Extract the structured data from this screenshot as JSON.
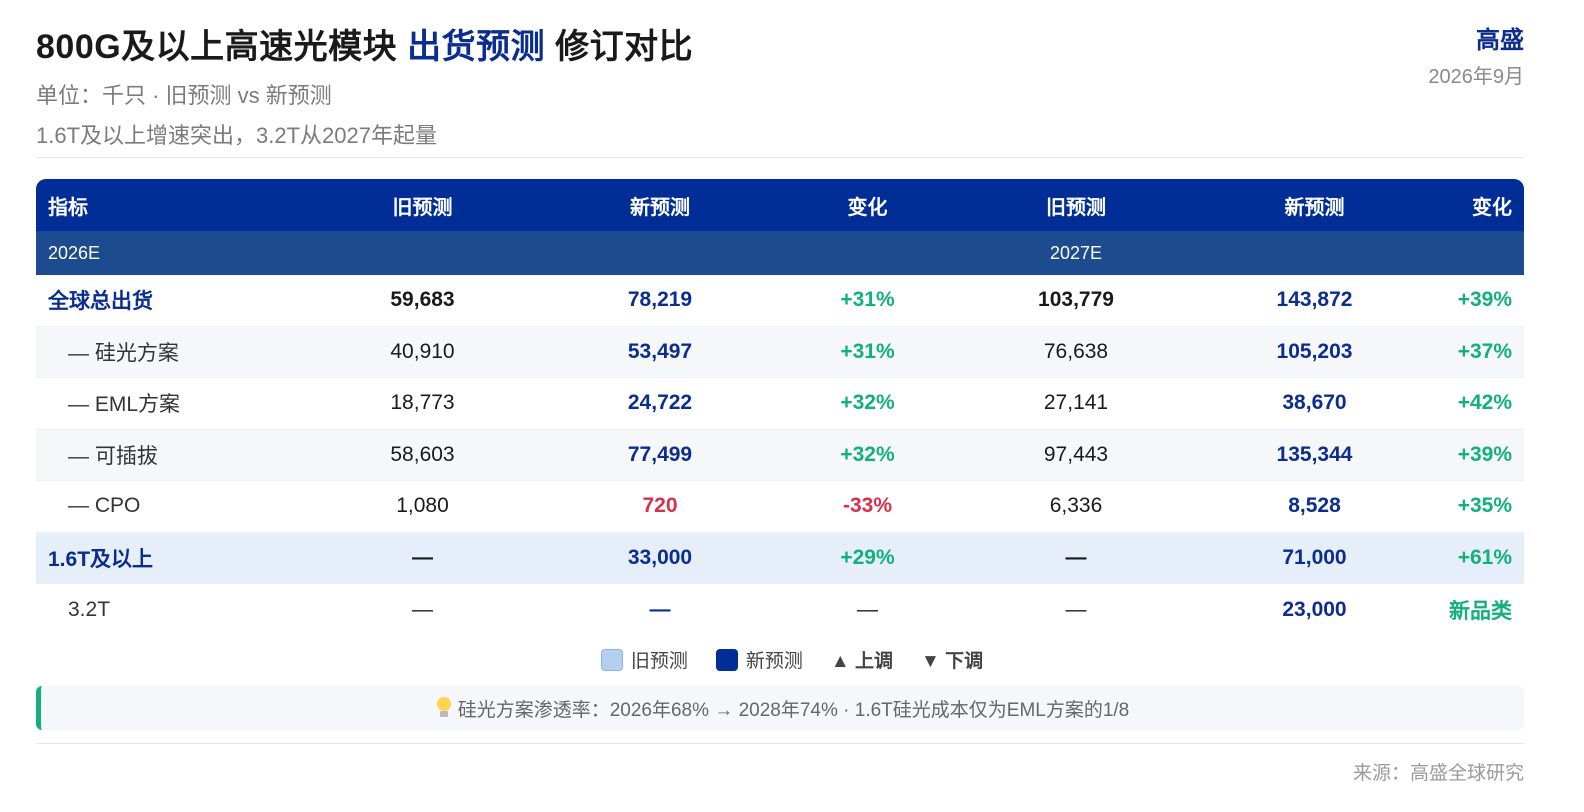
{
  "header": {
    "title_part1": "800G及以上高速光模块 ",
    "title_highlight": "出货预测",
    "title_part2": " 修订对比",
    "subtitle": "单位：千只 · 旧预测 vs 新预测",
    "subtitle2": "1.6T及以上增速突出，3.2T从2027年起量",
    "brand": "高盛",
    "date": "2026年9月"
  },
  "table": {
    "columns": [
      "指标",
      "旧预测",
      "新预测",
      "变化",
      "旧预测",
      "新预测",
      "变化"
    ],
    "period_left": "2026E",
    "period_right": "2027E",
    "rows": [
      {
        "label": "全球总出货",
        "old26": "59,683",
        "new26": "78,219",
        "chg26": "+31%",
        "old27": "103,779",
        "new27": "143,872",
        "chg27": "+39%"
      },
      {
        "label": "— 硅光方案",
        "old26": "40,910",
        "new26": "53,497",
        "chg26": "+31%",
        "old27": "76,638",
        "new27": "105,203",
        "chg27": "+37%"
      },
      {
        "label": "— EML方案",
        "old26": "18,773",
        "new26": "24,722",
        "chg26": "+32%",
        "old27": "27,141",
        "new27": "38,670",
        "chg27": "+42%"
      },
      {
        "label": "— 可插拔",
        "old26": "58,603",
        "new26": "77,499",
        "chg26": "+32%",
        "old27": "97,443",
        "new27": "135,344",
        "chg27": "+39%"
      },
      {
        "label": "— CPO",
        "old26": "1,080",
        "new26": "720",
        "chg26": "-33%",
        "old27": "6,336",
        "new27": "8,528",
        "chg27": "+35%"
      },
      {
        "label": "1.6T及以上",
        "old26": "—",
        "new26": "33,000",
        "chg26": "+29%",
        "old27": "—",
        "new27": "71,000",
        "chg27": "+61%"
      },
      {
        "label": "3.2T",
        "old26": "—",
        "new26": "—",
        "chg26": "—",
        "old27": "—",
        "new27": "23,000",
        "chg27": "新品类"
      }
    ]
  },
  "legend": {
    "old": "旧预测",
    "new": "新预测",
    "up": "▲ 上调",
    "down": "▼ 下调"
  },
  "note": "硅光方案渗透率：2026年68% → 2028年74% · 1.6T硅光成本仅为EML方案的1/8",
  "source": "来源：高盛全球研究",
  "colors": {
    "navy": "#002d96",
    "subheader": "#1c4b8f",
    "up": "#12b07a",
    "down": "#d9304a"
  },
  "icons": {
    "note_icon": "lightbulb-icon"
  }
}
